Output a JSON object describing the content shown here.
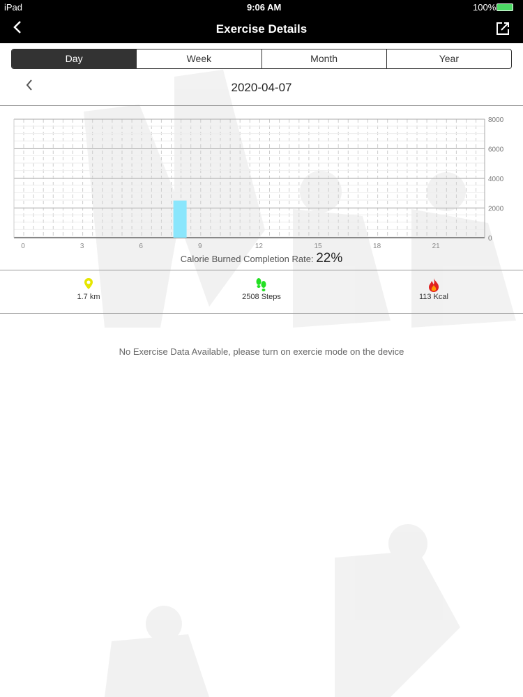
{
  "status_bar": {
    "device": "iPad",
    "time": "9:06 AM",
    "battery": "100%"
  },
  "nav": {
    "title": "Exercise Details",
    "back_icon": "chevron-left-icon",
    "share_icon": "share-icon"
  },
  "tabs": [
    {
      "label": "Day",
      "selected": true
    },
    {
      "label": "Week",
      "selected": false
    },
    {
      "label": "Month",
      "selected": false
    },
    {
      "label": "Year",
      "selected": false
    }
  ],
  "date": "2020-04-07",
  "summary": {
    "rate_label": "Calorie Burned Completion Rate:",
    "rate_value": "22%"
  },
  "stats": [
    {
      "icon": "location-pin-icon",
      "color": "#e6e600",
      "value": "1.7 km"
    },
    {
      "icon": "footsteps-icon",
      "color": "#22e022",
      "value": "2508 Steps"
    },
    {
      "icon": "fire-icon",
      "color": "#e02020",
      "value": "113 Kcal"
    }
  ],
  "message": "No Exercise Data Available, please turn on exercie mode on the device",
  "chart_data": {
    "type": "bar",
    "x_ticks": [
      "0",
      "3",
      "6",
      "9",
      "12",
      "15",
      "18",
      "21"
    ],
    "y_ticks": [
      "0",
      "2000",
      "4000",
      "6000",
      "8000"
    ],
    "ylim": [
      0,
      8000
    ],
    "xlim": [
      0,
      24
    ],
    "grid": true,
    "bar_color": "#8ae6fc",
    "series": [
      {
        "values": [
          {
            "hour": 8,
            "value": 2508
          }
        ]
      }
    ]
  }
}
